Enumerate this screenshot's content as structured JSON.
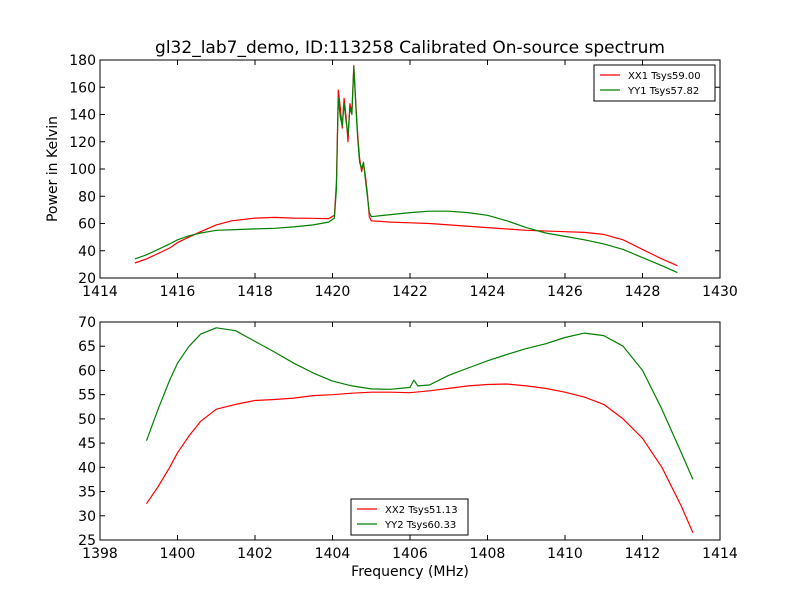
{
  "chart_data": [
    {
      "type": "line",
      "title": "gl32_lab7_demo, ID:113258 Calibrated On-source spectrum",
      "xlabel": "",
      "ylabel": "Power in Kelvin",
      "xlim": [
        1414,
        1430
      ],
      "ylim": [
        20,
        180
      ],
      "xticks": [
        "1414",
        "1416",
        "1418",
        "1420",
        "1422",
        "1424",
        "1426",
        "1428",
        "1430"
      ],
      "yticks": [
        "20",
        "40",
        "60",
        "80",
        "100",
        "120",
        "140",
        "160",
        "180"
      ],
      "legend_position": "top-right",
      "series": [
        {
          "name": "XX1 Tsys59.00",
          "color": "#ff0000",
          "points": [
            [
              1414.9,
              31
            ],
            [
              1415.2,
              34
            ],
            [
              1415.5,
              38
            ],
            [
              1415.8,
              42
            ],
            [
              1416.0,
              46
            ],
            [
              1416.3,
              50
            ],
            [
              1416.6,
              54
            ],
            [
              1417.0,
              59
            ],
            [
              1417.4,
              62
            ],
            [
              1418.0,
              64
            ],
            [
              1418.5,
              64.5
            ],
            [
              1419.0,
              64
            ],
            [
              1419.5,
              63.8
            ],
            [
              1419.9,
              63.5
            ],
            [
              1420.05,
              66
            ],
            [
              1420.1,
              90
            ],
            [
              1420.15,
              158
            ],
            [
              1420.2,
              145
            ],
            [
              1420.25,
              130
            ],
            [
              1420.3,
              152
            ],
            [
              1420.35,
              138
            ],
            [
              1420.4,
              120
            ],
            [
              1420.45,
              148
            ],
            [
              1420.5,
              142
            ],
            [
              1420.55,
              176
            ],
            [
              1420.6,
              150
            ],
            [
              1420.65,
              125
            ],
            [
              1420.7,
              108
            ],
            [
              1420.75,
              98
            ],
            [
              1420.8,
              104
            ],
            [
              1420.85,
              95
            ],
            [
              1420.9,
              82
            ],
            [
              1420.95,
              65
            ],
            [
              1421.0,
              62
            ],
            [
              1421.5,
              61
            ],
            [
              1422,
              60.5
            ],
            [
              1422.5,
              60
            ],
            [
              1423,
              59
            ],
            [
              1424,
              57
            ],
            [
              1425,
              55
            ],
            [
              1426,
              54
            ],
            [
              1426.5,
              53.5
            ],
            [
              1427,
              52
            ],
            [
              1427.5,
              48
            ],
            [
              1428,
              41
            ],
            [
              1428.5,
              34
            ],
            [
              1428.9,
              29
            ]
          ]
        },
        {
          "name": "YY1 Tsys57.82",
          "color": "#008000",
          "points": [
            [
              1414.9,
              34
            ],
            [
              1415.2,
              37
            ],
            [
              1415.5,
              41
            ],
            [
              1415.8,
              45
            ],
            [
              1416.0,
              48
            ],
            [
              1416.3,
              51
            ],
            [
              1416.6,
              53
            ],
            [
              1417.0,
              55
            ],
            [
              1417.5,
              55.5
            ],
            [
              1418.0,
              56
            ],
            [
              1418.5,
              56.5
            ],
            [
              1419.0,
              57.5
            ],
            [
              1419.5,
              59
            ],
            [
              1419.9,
              61
            ],
            [
              1420.05,
              64
            ],
            [
              1420.1,
              85
            ],
            [
              1420.15,
              152
            ],
            [
              1420.2,
              138
            ],
            [
              1420.25,
              132
            ],
            [
              1420.3,
              148
            ],
            [
              1420.35,
              135
            ],
            [
              1420.4,
              125
            ],
            [
              1420.45,
              145
            ],
            [
              1420.5,
              140
            ],
            [
              1420.55,
              175
            ],
            [
              1420.6,
              148
            ],
            [
              1420.65,
              122
            ],
            [
              1420.7,
              105
            ],
            [
              1420.75,
              100
            ],
            [
              1420.8,
              105
            ],
            [
              1420.85,
              92
            ],
            [
              1420.9,
              80
            ],
            [
              1420.95,
              68
            ],
            [
              1421.0,
              65
            ],
            [
              1421.5,
              66.5
            ],
            [
              1422,
              68
            ],
            [
              1422.5,
              69
            ],
            [
              1423,
              69
            ],
            [
              1423.5,
              68
            ],
            [
              1424,
              66
            ],
            [
              1424.5,
              62
            ],
            [
              1425,
              57
            ],
            [
              1425.5,
              53
            ],
            [
              1426,
              50.5
            ],
            [
              1426.5,
              48
            ],
            [
              1427,
              45
            ],
            [
              1427.5,
              41
            ],
            [
              1428,
              35
            ],
            [
              1428.5,
              29
            ],
            [
              1428.9,
              24
            ]
          ]
        }
      ]
    },
    {
      "type": "line",
      "title": "",
      "xlabel": "Frequency (MHz)",
      "ylabel": "",
      "xlim": [
        1398,
        1414
      ],
      "ylim": [
        25,
        70
      ],
      "xticks": [
        "1398",
        "1400",
        "1402",
        "1404",
        "1406",
        "1408",
        "1410",
        "1412",
        "1414"
      ],
      "yticks": [
        "25",
        "30",
        "35",
        "40",
        "45",
        "50",
        "55",
        "60",
        "65",
        "70"
      ],
      "legend_position": "bottom-center",
      "series": [
        {
          "name": "XX2 Tsys51.13",
          "color": "#ff0000",
          "points": [
            [
              1399.2,
              32.5
            ],
            [
              1399.5,
              36
            ],
            [
              1399.8,
              40
            ],
            [
              1400.0,
              43
            ],
            [
              1400.3,
              46.5
            ],
            [
              1400.6,
              49.5
            ],
            [
              1401.0,
              52
            ],
            [
              1401.5,
              53
            ],
            [
              1402.0,
              53.8
            ],
            [
              1402.5,
              54
            ],
            [
              1403.0,
              54.3
            ],
            [
              1403.5,
              54.8
            ],
            [
              1404.0,
              55
            ],
            [
              1404.5,
              55.3
            ],
            [
              1405.0,
              55.5
            ],
            [
              1405.5,
              55.5
            ],
            [
              1406.0,
              55.4
            ],
            [
              1406.5,
              55.8
            ],
            [
              1407.0,
              56.3
            ],
            [
              1407.5,
              56.8
            ],
            [
              1408.0,
              57.1
            ],
            [
              1408.5,
              57.2
            ],
            [
              1409.0,
              56.8
            ],
            [
              1409.5,
              56.3
            ],
            [
              1410.0,
              55.5
            ],
            [
              1410.5,
              54.5
            ],
            [
              1411.0,
              53
            ],
            [
              1411.5,
              50
            ],
            [
              1412.0,
              46
            ],
            [
              1412.5,
              40
            ],
            [
              1413.0,
              32
            ],
            [
              1413.3,
              26.5
            ]
          ]
        },
        {
          "name": "YY2 Tsys60.33",
          "color": "#008000",
          "points": [
            [
              1399.2,
              45.5
            ],
            [
              1399.5,
              52
            ],
            [
              1399.8,
              58
            ],
            [
              1400.0,
              61.5
            ],
            [
              1400.3,
              65
            ],
            [
              1400.6,
              67.5
            ],
            [
              1401.0,
              68.8
            ],
            [
              1401.5,
              68.2
            ],
            [
              1402.0,
              66
            ],
            [
              1402.5,
              63.8
            ],
            [
              1403.0,
              61.5
            ],
            [
              1403.5,
              59.5
            ],
            [
              1404.0,
              57.8
            ],
            [
              1404.5,
              56.8
            ],
            [
              1405.0,
              56.2
            ],
            [
              1405.5,
              56.1
            ],
            [
              1406.0,
              56.5
            ],
            [
              1406.1,
              58
            ],
            [
              1406.2,
              56.8
            ],
            [
              1406.5,
              57
            ],
            [
              1407.0,
              59
            ],
            [
              1407.5,
              60.5
            ],
            [
              1408.0,
              62
            ],
            [
              1408.5,
              63.3
            ],
            [
              1409.0,
              64.5
            ],
            [
              1409.5,
              65.5
            ],
            [
              1410.0,
              66.8
            ],
            [
              1410.5,
              67.7
            ],
            [
              1411.0,
              67.2
            ],
            [
              1411.5,
              65
            ],
            [
              1412.0,
              60
            ],
            [
              1412.5,
              52
            ],
            [
              1413.0,
              43
            ],
            [
              1413.3,
              37.5
            ]
          ]
        }
      ]
    }
  ]
}
